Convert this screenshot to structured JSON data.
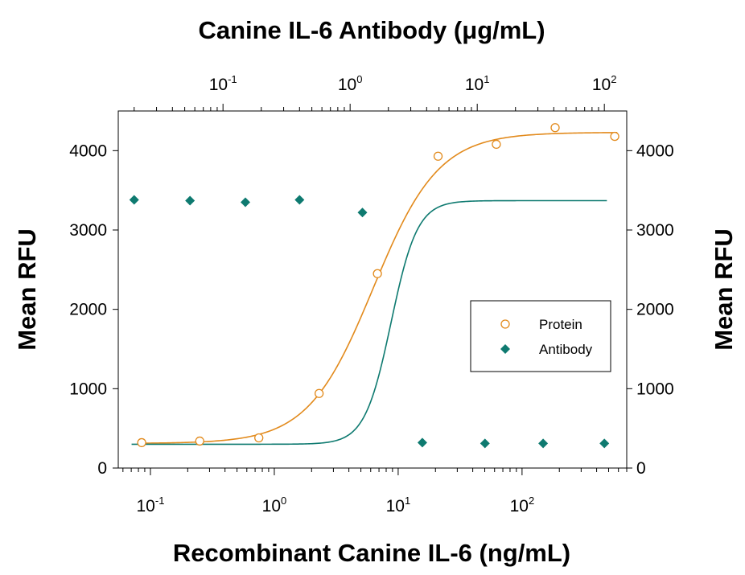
{
  "chart_data": {
    "type": "scatter",
    "title": "Canine IL-6 Antibody (μg/mL)",
    "xlabel": "Recombinant Canine IL-6 (ng/mL)",
    "ylabel": "Mean RFU",
    "ylabel_right": "Mean RFU",
    "x_scale": "log",
    "x2_scale": "log",
    "xlim": [
      0.055,
      700
    ],
    "x2lim": [
      0.015,
      150
    ],
    "ylim": [
      0,
      4500
    ],
    "x_ticks": [
      {
        "value": 0.1,
        "base": "10",
        "exp": "-1"
      },
      {
        "value": 1,
        "base": "10",
        "exp": "0"
      },
      {
        "value": 10,
        "base": "10",
        "exp": "1"
      },
      {
        "value": 100,
        "base": "10",
        "exp": "2"
      }
    ],
    "x2_ticks": [
      {
        "value": 0.1,
        "base": "10",
        "exp": "-1"
      },
      {
        "value": 1,
        "base": "10",
        "exp": "0"
      },
      {
        "value": 10,
        "base": "10",
        "exp": "1"
      },
      {
        "value": 100,
        "base": "10",
        "exp": "2"
      }
    ],
    "y_ticks": [
      "0",
      "1000",
      "2000",
      "3000",
      "4000"
    ],
    "y_tick_values": [
      0,
      1000,
      2000,
      3000,
      4000
    ],
    "grid": false,
    "legend": "center-right",
    "series": [
      {
        "name": "Protein",
        "axis": "bottom",
        "marker": "open-circle",
        "color": "#e28a1c",
        "x": [
          0.085,
          0.25,
          0.75,
          2.3,
          6.8,
          21,
          62,
          185,
          560
        ],
        "y": [
          320,
          340,
          380,
          940,
          2450,
          3930,
          4080,
          4290,
          4180
        ]
      },
      {
        "name": "Antibody",
        "axis": "top",
        "marker": "filled-diamond",
        "color": "#0e7a70",
        "x": [
          0.02,
          0.055,
          0.15,
          0.4,
          1.25,
          3.7,
          11.5,
          33,
          100
        ],
        "y": [
          3380,
          3370,
          3350,
          3380,
          3220,
          320,
          310,
          310,
          310
        ]
      }
    ]
  }
}
